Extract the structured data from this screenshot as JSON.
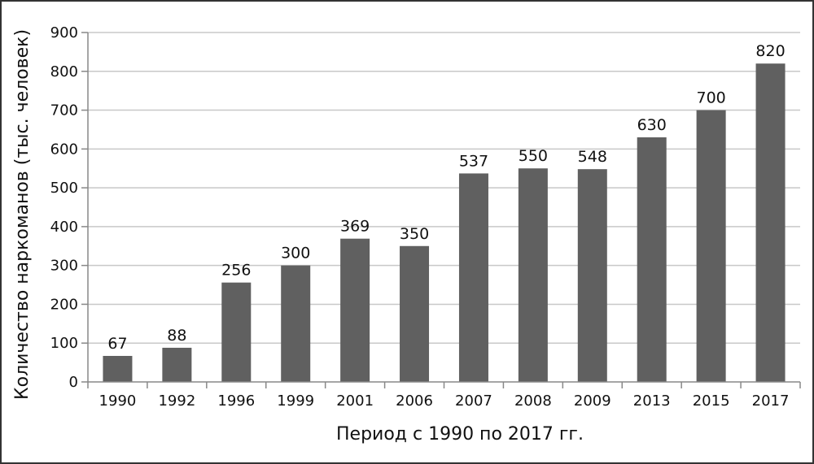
{
  "chart_data": {
    "type": "bar",
    "categories": [
      "1990",
      "1992",
      "1996",
      "1999",
      "2001",
      "2006",
      "2007",
      "2008",
      "2009",
      "2013",
      "2015",
      "2017"
    ],
    "values": [
      67,
      88,
      256,
      300,
      369,
      350,
      537,
      550,
      548,
      630,
      700,
      820
    ],
    "data_labels": [
      "67",
      "88",
      "256",
      "300",
      "369",
      "350",
      "537",
      "550",
      "548",
      "630",
      "700",
      "820"
    ],
    "title": "",
    "xlabel": "Период с 1990 по 2017 гг.",
    "ylabel": "Количество наркоманов (тыс. человек)",
    "ylim": [
      0,
      900
    ],
    "yticks": [
      "0",
      "100",
      "200",
      "300",
      "400",
      "500",
      "600",
      "700",
      "800",
      "900"
    ],
    "grid": true,
    "legend": "none",
    "colors": {
      "bar": "#606060",
      "grid": "#c8c8c8",
      "axis": "#888888",
      "frame": "#333333"
    }
  }
}
